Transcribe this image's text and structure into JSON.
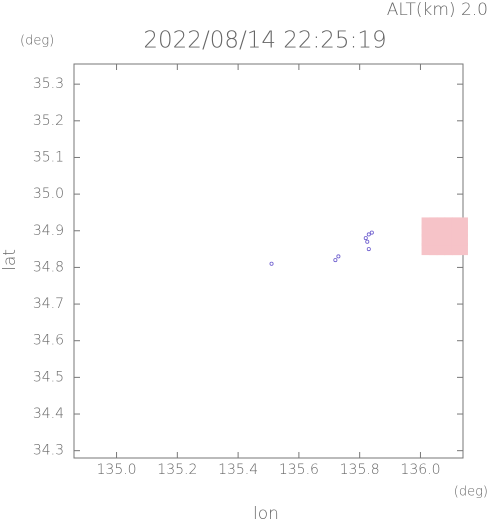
{
  "chart_data": {
    "type": "scatter",
    "title": "2022/08/14 22:25:19",
    "altitude_label": "ALT(km) 2.0",
    "y_unit": "(deg)",
    "x_unit": "(deg)",
    "xlabel": "lon",
    "ylabel": "lat",
    "xlim": [
      134.86,
      136.14
    ],
    "ylim": [
      34.28,
      35.355
    ],
    "xticks": [
      {
        "value": 135.0,
        "label": "135.0"
      },
      135.2,
      135.4,
      135.6,
      135.8,
      {
        "value": 136.0,
        "label": "136.0"
      }
    ],
    "yticks": [
      34.3,
      34.4,
      34.5,
      34.6,
      34.7,
      34.8,
      34.9,
      {
        "value": 35.0,
        "label": "35.0"
      },
      35.1,
      35.2,
      35.3
    ],
    "series": [
      {
        "color": "#6a5acd",
        "x": [
          135.51,
          135.72,
          135.73,
          135.82,
          135.83,
          135.84,
          135.825,
          135.83
        ],
        "values": [
          34.81,
          34.82,
          34.83,
          34.88,
          34.89,
          34.895,
          34.87,
          34.85
        ]
      },
      {
        "color": "#f6c3c8",
        "x": [
          136.03,
          136.055,
          136.08,
          136.105,
          136.13,
          136.03,
          136.055,
          136.08,
          136.105,
          136.13,
          136.03,
          136.055,
          136.08,
          136.105,
          136.13,
          136.03,
          136.055,
          136.08,
          136.105,
          136.13
        ],
        "values": [
          34.85,
          34.85,
          34.85,
          34.85,
          34.85,
          34.875,
          34.875,
          34.875,
          34.875,
          34.875,
          34.9,
          34.9,
          34.9,
          34.9,
          34.9,
          34.92,
          34.92,
          34.92,
          34.92,
          34.92
        ]
      }
    ]
  }
}
